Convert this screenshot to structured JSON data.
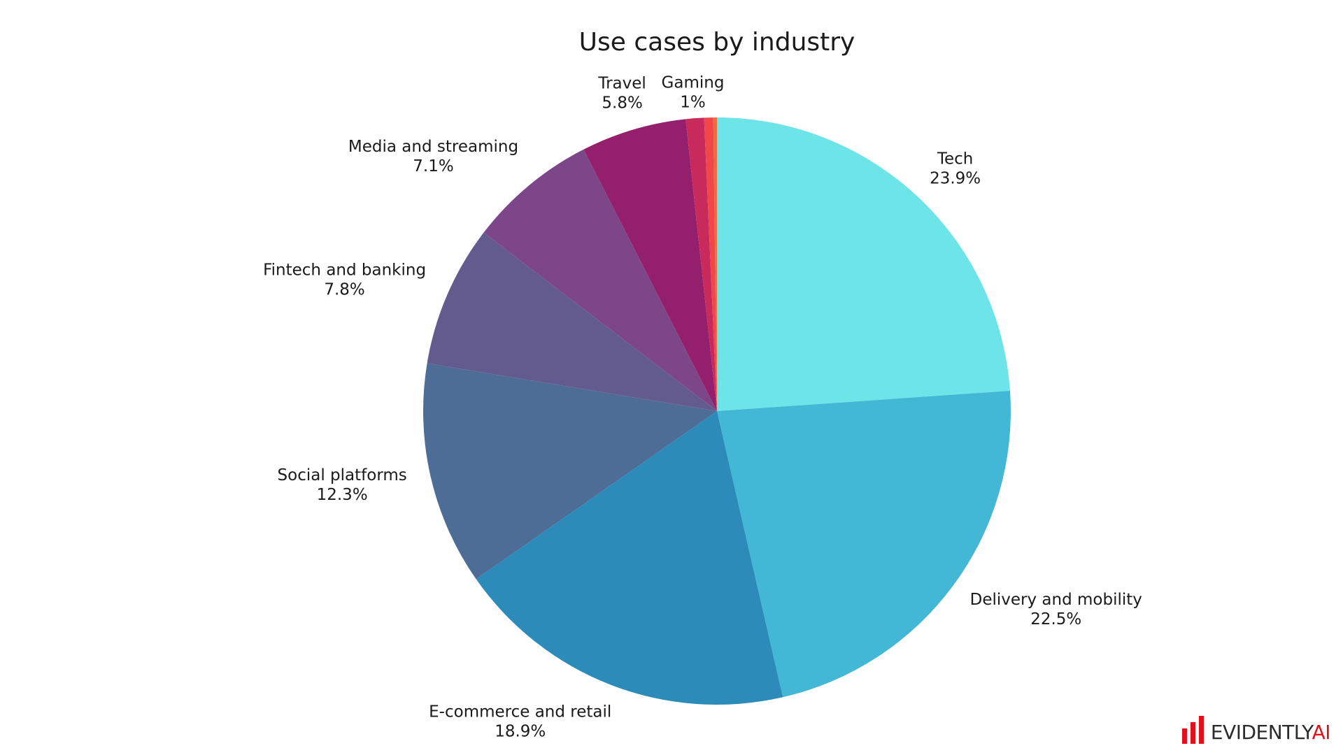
{
  "chart_data": {
    "type": "pie",
    "title": "Use cases by industry",
    "start_angle_deg": 0,
    "direction": "clockwise",
    "slices": [
      {
        "label": "Tech",
        "value": 23.9,
        "display": "23.9%",
        "color": "#6ce4e8"
      },
      {
        "label": "Delivery and mobility",
        "value": 22.5,
        "display": "22.5%",
        "color": "#42b7d6"
      },
      {
        "label": "E-commerce and retail",
        "value": 18.9,
        "display": "18.9%",
        "color": "#2d8bb9"
      },
      {
        "label": "Social platforms",
        "value": 12.3,
        "display": "12.3%",
        "color": "#4e6d96"
      },
      {
        "label": "Fintech and banking",
        "value": 7.8,
        "display": "7.8%",
        "color": "#635a8d"
      },
      {
        "label": "Media and streaming",
        "value": 7.1,
        "display": "7.1%",
        "color": "#7d4688"
      },
      {
        "label": "Travel",
        "value": 5.8,
        "display": "5.8%",
        "color": "#941f6c"
      },
      {
        "label": "Gaming",
        "value": 1.0,
        "display": "1%",
        "color": "#c92a5c"
      },
      {
        "label": "",
        "value": 0.5,
        "display": "",
        "color": "#f0474a"
      },
      {
        "label": "",
        "value": 0.2,
        "display": "",
        "color": "#f26a3c"
      }
    ]
  },
  "brand": {
    "logo_text": "EVIDENTLY",
    "logo_suffix": "AI",
    "accent_color": "#e3101b"
  }
}
